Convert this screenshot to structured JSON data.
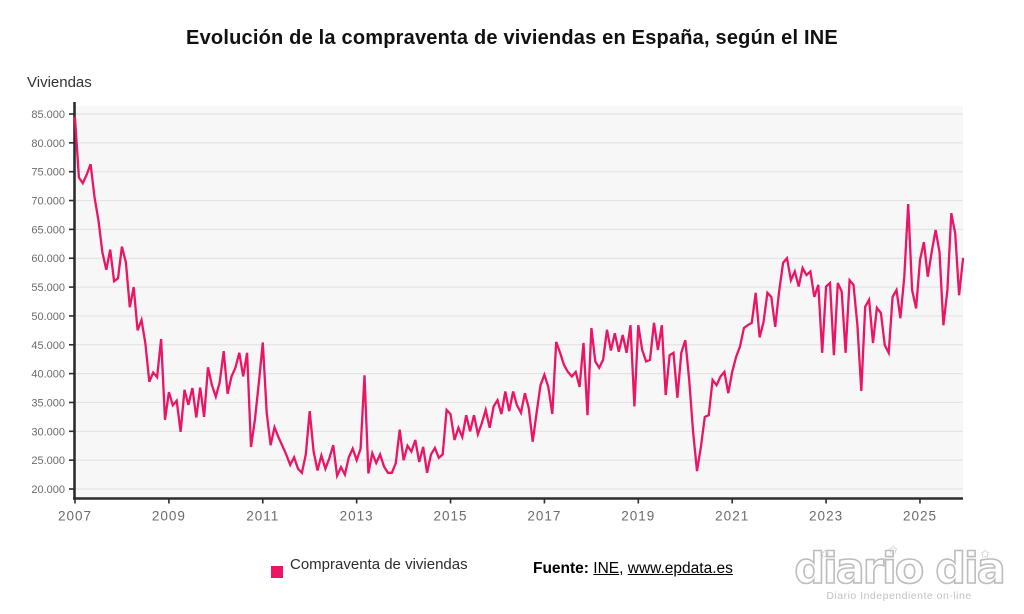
{
  "title": "Evolución de la compraventa de viviendas en España, según el INE",
  "y_axis": {
    "label": "Viviendas",
    "tick_labels": [
      "85.000",
      "80.000",
      "75.000",
      "70.000",
      "65.000",
      "60.000",
      "55.000",
      "50.000",
      "45.000",
      "40.000",
      "35.000",
      "30.000",
      "25.000",
      "20.000"
    ],
    "tick_values": [
      85000,
      80000,
      75000,
      70000,
      65000,
      60000,
      55000,
      50000,
      45000,
      40000,
      35000,
      30000,
      25000,
      20000
    ]
  },
  "x_axis": {
    "tick_labels": [
      "2007",
      "2009",
      "2011",
      "2013",
      "2015",
      "2017",
      "2019",
      "2021",
      "2023",
      "2025"
    ],
    "tick_years": [
      2007,
      2009,
      2011,
      2013,
      2015,
      2017,
      2019,
      2021,
      2023,
      2025
    ]
  },
  "legend": {
    "label": "Compraventa de viviendas"
  },
  "source": {
    "prefix": "Fuente:",
    "link1": "INE",
    "separator": ", ",
    "link2": "www.epdata.es"
  },
  "watermark": {
    "name": "diario dia",
    "tagline": "Diario Independiente on-line",
    "star": "✩"
  },
  "colors": {
    "line": "#ec1464",
    "plot_bg": "#f7f7f7",
    "grid": "#e4e4e4",
    "axis": "#2d2d2d",
    "tick_text": "#6b6b6b"
  },
  "chart_data": {
    "type": "line",
    "title": "Evolución de la compraventa de viviendas en España, según el INE",
    "ylabel": "Viviendas",
    "ylim": [
      20000,
      85000
    ],
    "grid": "horizontal",
    "legend_position": "bottom",
    "frequency": "monthly",
    "x_start": "2007-01",
    "x_end": "2025-12",
    "series": [
      {
        "name": "Compraventa de viviendas",
        "values": [
          84300,
          74000,
          73000,
          74500,
          76300,
          70500,
          66500,
          61000,
          58000,
          61500,
          56000,
          56500,
          62000,
          59300,
          51500,
          55000,
          47500,
          49300,
          45200,
          38600,
          40200,
          39400,
          46000,
          32000,
          36800,
          34500,
          35300,
          29900,
          37200,
          34600,
          37500,
          32400,
          37600,
          32500,
          41100,
          38000,
          36000,
          38500,
          43900,
          36500,
          39500,
          41000,
          43600,
          39500,
          43600,
          27300,
          32000,
          38500,
          45400,
          33200,
          27600,
          30700,
          29000,
          27500,
          26000,
          24200,
          25500,
          23500,
          22800,
          26000,
          33500,
          26500,
          23200,
          25800,
          23500,
          25300,
          27600,
          22300,
          23800,
          22500,
          25500,
          27000,
          25000,
          27000,
          39700,
          22700,
          26200,
          24500,
          26000,
          23900,
          22800,
          22800,
          24500,
          30300,
          25000,
          27500,
          26500,
          28500,
          24700,
          27300,
          22800,
          26000,
          27100,
          25400,
          26000,
          33700,
          33000,
          28500,
          30600,
          29000,
          32800,
          30000,
          32800,
          29500,
          31400,
          33700,
          30600,
          34300,
          35400,
          33000,
          36900,
          33500,
          36900,
          34500,
          33200,
          36600,
          34000,
          28200,
          33200,
          38000,
          39800,
          37700,
          33000,
          45500,
          43600,
          41500,
          40300,
          39500,
          40300,
          37700,
          45300,
          32800,
          47900,
          42100,
          41000,
          42400,
          47600,
          44000,
          47000,
          43800,
          46700,
          43600,
          48400,
          34300,
          48400,
          44100,
          42100,
          42400,
          48800,
          44100,
          48400,
          36300,
          43200,
          43600,
          35800,
          43600,
          45800,
          38900,
          29900,
          23100,
          27300,
          32500,
          32800,
          38900,
          38000,
          39500,
          40300,
          36600,
          40300,
          42900,
          44700,
          47900,
          48400,
          48800,
          54000,
          46300,
          48900,
          54000,
          53300,
          48100,
          54200,
          59200,
          60000,
          56200,
          57700,
          55100,
          58300,
          57100,
          57700,
          53300,
          55400,
          43600,
          55100,
          55700,
          43200,
          55700,
          54200,
          43600,
          56200,
          55400,
          48400,
          37000,
          51600,
          52800,
          45300,
          51400,
          50500,
          44900,
          43600,
          53300,
          54500,
          49600,
          56800,
          69400,
          54500,
          51300,
          59700,
          62800,
          56800,
          61100,
          64900,
          61100,
          48400,
          54500,
          67800,
          64300,
          53600,
          59900
        ]
      }
    ]
  }
}
